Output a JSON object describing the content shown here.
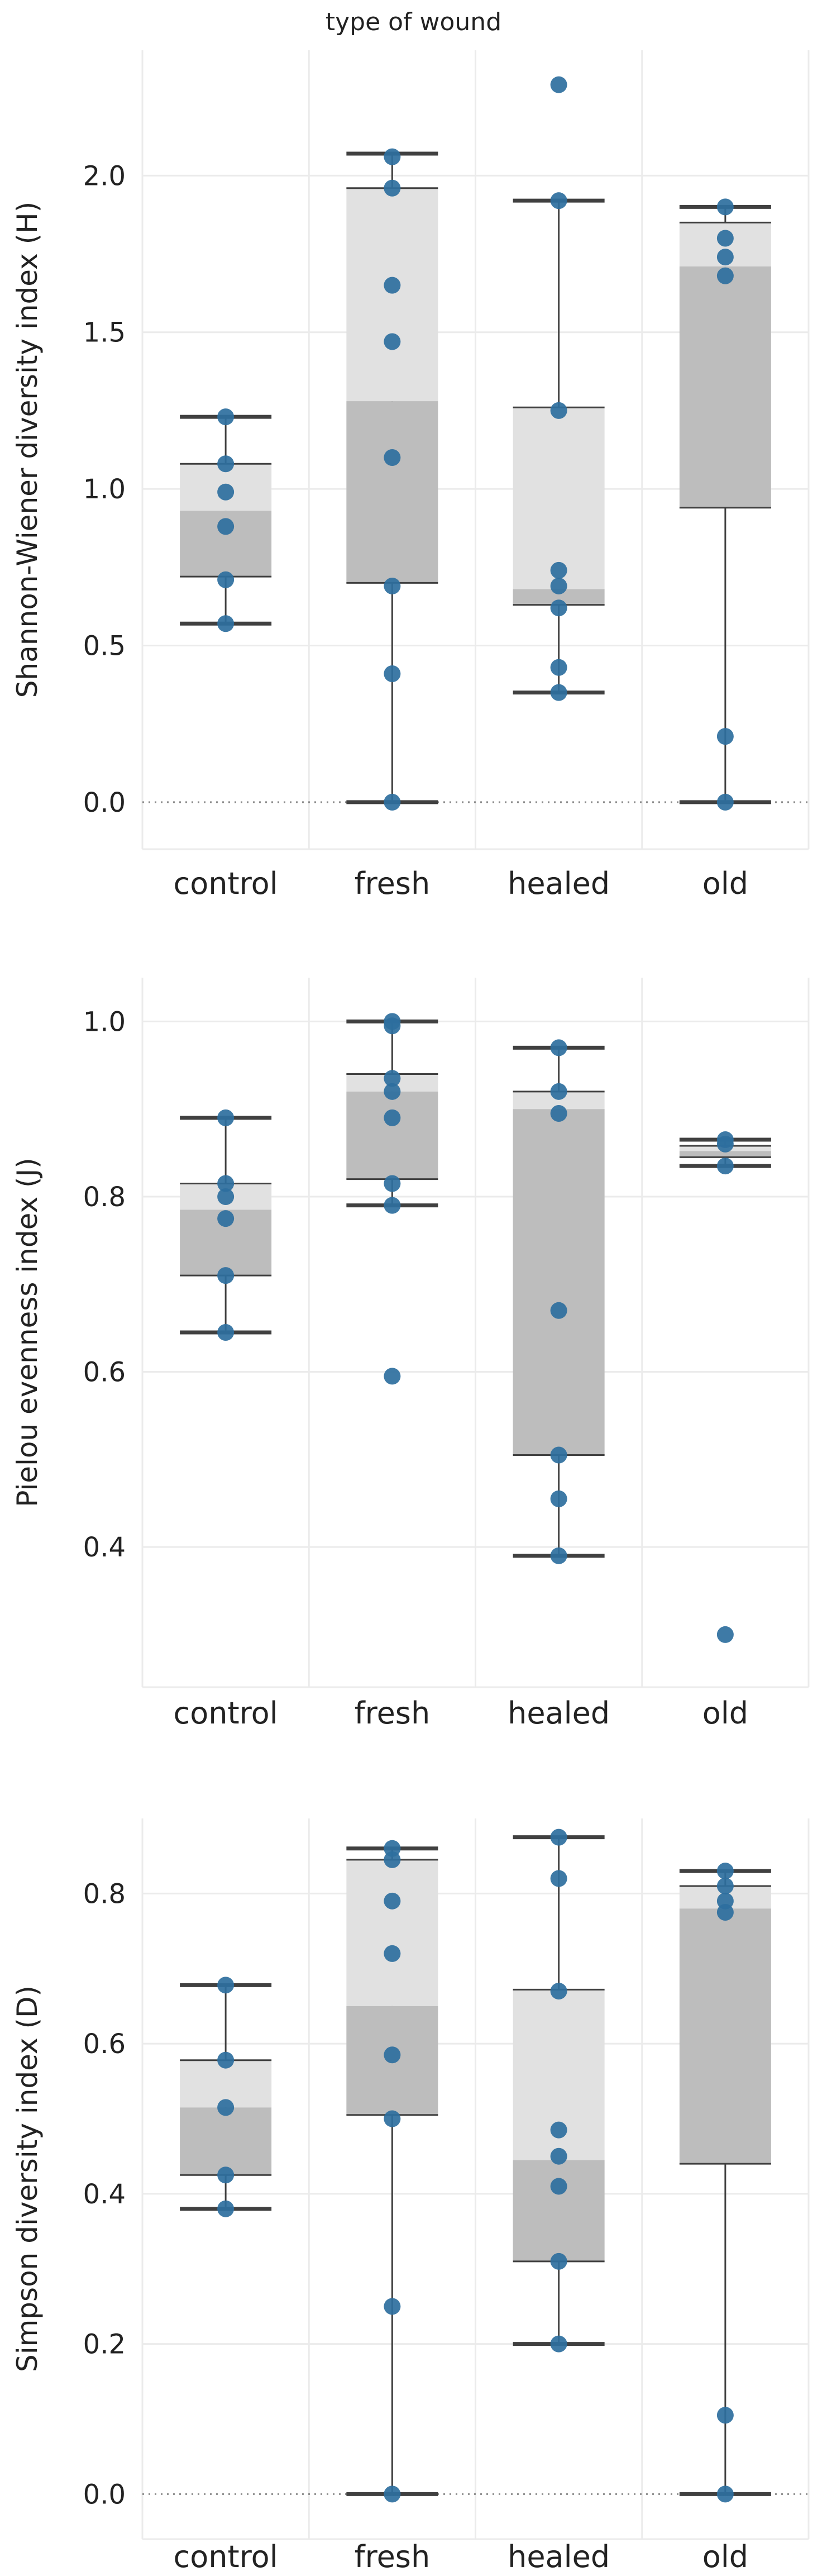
{
  "figure": {
    "title": "type of wound"
  },
  "colors": {
    "point": "#2e6f9e",
    "iqr_upper": "#e1e1e1",
    "iqr_lower": "#bdbdbd",
    "whisker": "#404040",
    "grid": "#ebebeb",
    "zero_line": "#8c8c8c",
    "text": "#222222"
  },
  "chart_data": [
    {
      "type": "box",
      "title": "type of wound",
      "xlabel": "",
      "ylabel": "Shannon-Wiener diversity index (H)",
      "categories": [
        "control",
        "fresh",
        "healed",
        "old"
      ],
      "ylim": [
        -0.15,
        2.4
      ],
      "yticks": [
        0.0,
        0.5,
        1.0,
        1.5,
        2.0
      ],
      "ytick_labels": [
        "0.0",
        "0.5",
        "1.0",
        "1.5",
        "2.0"
      ],
      "zero_line": true,
      "boxes": [
        {
          "category": "control",
          "whisker_low": 0.57,
          "q1": 0.72,
          "median": 0.93,
          "q3": 1.08,
          "whisker_high": 1.23,
          "points": [
            1.23,
            1.08,
            0.99,
            0.88,
            0.71,
            0.57
          ]
        },
        {
          "category": "fresh",
          "whisker_low": 0.0,
          "q1": 0.7,
          "median": 1.28,
          "q3": 1.96,
          "whisker_high": 2.07,
          "points": [
            2.06,
            1.96,
            1.65,
            1.47,
            1.1,
            0.69,
            0.41,
            0.0
          ]
        },
        {
          "category": "healed",
          "whisker_low": 0.35,
          "q1": 0.63,
          "median": 0.68,
          "q3": 1.26,
          "whisker_high": 1.92,
          "points": [
            2.29,
            1.92,
            1.25,
            0.74,
            0.69,
            0.62,
            0.43,
            0.35
          ]
        },
        {
          "category": "old",
          "whisker_low": 0.0,
          "q1": 0.94,
          "median": 1.71,
          "q3": 1.85,
          "whisker_high": 1.9,
          "points": [
            1.9,
            1.8,
            1.74,
            1.68,
            0.21,
            0.0
          ]
        }
      ]
    },
    {
      "type": "box",
      "title": "",
      "xlabel": "",
      "ylabel": "Pielou evenness index (J)",
      "categories": [
        "control",
        "fresh",
        "healed",
        "old"
      ],
      "ylim": [
        0.24,
        1.05
      ],
      "yticks": [
        0.4,
        0.6,
        0.8,
        1.0
      ],
      "ytick_labels": [
        "0.4",
        "0.6",
        "0.8",
        "1.0"
      ],
      "zero_line": false,
      "boxes": [
        {
          "category": "control",
          "whisker_low": 0.645,
          "q1": 0.71,
          "median": 0.785,
          "q3": 0.815,
          "whisker_high": 0.89,
          "points": [
            0.89,
            0.815,
            0.8,
            0.775,
            0.71,
            0.645
          ]
        },
        {
          "category": "fresh",
          "whisker_low": 0.79,
          "q1": 0.82,
          "median": 0.92,
          "q3": 0.94,
          "whisker_high": 1.0,
          "points": [
            1.0,
            0.995,
            0.935,
            0.92,
            0.89,
            0.815,
            0.79,
            0.595
          ]
        },
        {
          "category": "healed",
          "whisker_low": 0.39,
          "q1": 0.505,
          "median": 0.9,
          "q3": 0.92,
          "whisker_high": 0.97,
          "points": [
            0.97,
            0.92,
            0.895,
            0.67,
            0.505,
            0.455,
            0.39
          ]
        },
        {
          "category": "old",
          "whisker_low": 0.835,
          "q1": 0.845,
          "median": 0.852,
          "q3": 0.858,
          "whisker_high": 0.865,
          "points": [
            0.865,
            0.86,
            0.835,
            0.3
          ]
        }
      ]
    },
    {
      "type": "box",
      "title": "",
      "xlabel": "",
      "ylabel": "Simpson diversity index (D)",
      "categories": [
        "control",
        "fresh",
        "healed",
        "old"
      ],
      "ylim": [
        -0.06,
        0.9
      ],
      "yticks": [
        0.0,
        0.2,
        0.4,
        0.6,
        0.8
      ],
      "ytick_labels": [
        "0.0",
        "0.2",
        "0.4",
        "0.6",
        "0.8"
      ],
      "zero_line": true,
      "boxes": [
        {
          "category": "control",
          "whisker_low": 0.38,
          "q1": 0.425,
          "median": 0.515,
          "q3": 0.578,
          "whisker_high": 0.678,
          "points": [
            0.678,
            0.578,
            0.515,
            0.425,
            0.38
          ]
        },
        {
          "category": "fresh",
          "whisker_low": 0.0,
          "q1": 0.505,
          "median": 0.65,
          "q3": 0.845,
          "whisker_high": 0.86,
          "points": [
            0.86,
            0.845,
            0.79,
            0.72,
            0.585,
            0.5,
            0.25,
            0.0
          ]
        },
        {
          "category": "healed",
          "whisker_low": 0.2,
          "q1": 0.31,
          "median": 0.445,
          "q3": 0.672,
          "whisker_high": 0.875,
          "points": [
            0.875,
            0.82,
            0.67,
            0.485,
            0.45,
            0.41,
            0.31,
            0.2
          ]
        },
        {
          "category": "old",
          "whisker_low": 0.0,
          "q1": 0.44,
          "median": 0.78,
          "q3": 0.81,
          "whisker_high": 0.83,
          "points": [
            0.83,
            0.81,
            0.79,
            0.775,
            0.105,
            0.0
          ]
        }
      ]
    }
  ]
}
